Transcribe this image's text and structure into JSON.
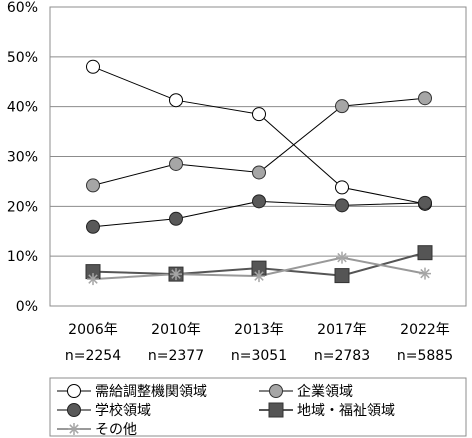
{
  "chart_data": {
    "type": "line",
    "categories": [
      "2006年",
      "2010年",
      "2013年",
      "2017年",
      "2022年"
    ],
    "category_sublabels": [
      "n=2254",
      "n=2377",
      "n=3051",
      "n=2783",
      "n=5885"
    ],
    "y_ticks": [
      "0%",
      "10%",
      "20%",
      "30%",
      "40%",
      "50%",
      "60%"
    ],
    "ylim": [
      0,
      60
    ],
    "grid": "horizontal",
    "legend_position": "bottom",
    "series": [
      {
        "name": "需給調整機関領域",
        "values": [
          48,
          41.3,
          38.5,
          23.8,
          20.5
        ],
        "marker": "open-circle",
        "color": "#000000"
      },
      {
        "name": "企業領域",
        "values": [
          24.2,
          28.5,
          26.8,
          40.1,
          41.7
        ],
        "marker": "light-circle",
        "color": "#000000"
      },
      {
        "name": "学校領域",
        "values": [
          15.9,
          17.5,
          21,
          20.2,
          20.7
        ],
        "marker": "dark-circle",
        "color": "#000000"
      },
      {
        "name": "地域・福祉領域",
        "values": [
          6.9,
          6.4,
          7.6,
          6.1,
          10.7
        ],
        "marker": "dark-square",
        "color": "#555555"
      },
      {
        "name": "その他",
        "values": [
          5.4,
          6.4,
          6,
          9.7,
          6.5
        ],
        "marker": "star",
        "color": "#999999"
      }
    ]
  }
}
